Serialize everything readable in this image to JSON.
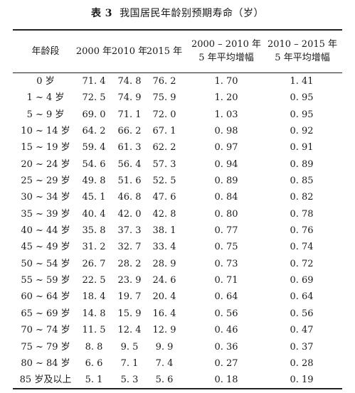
{
  "caption": {
    "number": "表 3",
    "title": "我国居民年龄别预期寿命（岁）"
  },
  "headers": {
    "age": "年龄段",
    "y2000": "2000 年",
    "y2010": "2010 年",
    "y2015": "2015 年",
    "inc1_line1": "2000 – 2010 年",
    "inc1_line2": "5 年平均增幅",
    "inc2_line1": "2010 – 2015 年",
    "inc2_line2": "5 年平均增幅"
  },
  "rows": [
    {
      "age": "0 岁",
      "y2000": "71. 4",
      "y2010": "74. 8",
      "y2015": "76. 2",
      "inc1": "1. 70",
      "inc2": "1. 41"
    },
    {
      "age": "1 ~ 4 岁",
      "y2000": "72. 5",
      "y2010": "74. 9",
      "y2015": "75. 9",
      "inc1": "1. 20",
      "inc2": "0. 95"
    },
    {
      "age": "5 ~ 9 岁",
      "y2000": "69. 0",
      "y2010": "71. 1",
      "y2015": "72. 0",
      "inc1": "1. 03",
      "inc2": "0. 95"
    },
    {
      "age": "10 ~ 14 岁",
      "y2000": "64. 2",
      "y2010": "66. 2",
      "y2015": "67. 1",
      "inc1": "0. 98",
      "inc2": "0. 92"
    },
    {
      "age": "15 ~ 19 岁",
      "y2000": "59. 4",
      "y2010": "61. 3",
      "y2015": "62. 2",
      "inc1": "0. 97",
      "inc2": "0. 91"
    },
    {
      "age": "20 ~ 24 岁",
      "y2000": "54. 6",
      "y2010": "56. 4",
      "y2015": "57. 3",
      "inc1": "0. 94",
      "inc2": "0. 89"
    },
    {
      "age": "25 ~ 29 岁",
      "y2000": "49. 8",
      "y2010": "51. 6",
      "y2015": "52. 5",
      "inc1": "0. 89",
      "inc2": "0. 85"
    },
    {
      "age": "30 ~ 34 岁",
      "y2000": "45. 1",
      "y2010": "46. 8",
      "y2015": "47. 6",
      "inc1": "0. 84",
      "inc2": "0. 82"
    },
    {
      "age": "35 ~ 39 岁",
      "y2000": "40. 4",
      "y2010": "42. 0",
      "y2015": "42. 8",
      "inc1": "0. 80",
      "inc2": "0. 78"
    },
    {
      "age": "40 ~ 44 岁",
      "y2000": "35. 8",
      "y2010": "37. 3",
      "y2015": "38. 1",
      "inc1": "0. 77",
      "inc2": "0. 76"
    },
    {
      "age": "45 ~ 49 岁",
      "y2000": "31. 2",
      "y2010": "32. 7",
      "y2015": "33. 4",
      "inc1": "0. 75",
      "inc2": "0. 74"
    },
    {
      "age": "50 ~ 54 岁",
      "y2000": "26. 7",
      "y2010": "28. 2",
      "y2015": "28. 9",
      "inc1": "0. 73",
      "inc2": "0. 72"
    },
    {
      "age": "55 ~ 59 岁",
      "y2000": "22. 5",
      "y2010": "23. 9",
      "y2015": "24. 6",
      "inc1": "0. 71",
      "inc2": "0. 69"
    },
    {
      "age": "60 ~ 64 岁",
      "y2000": "18. 4",
      "y2010": "19. 7",
      "y2015": "20. 4",
      "inc1": "0. 64",
      "inc2": "0. 64"
    },
    {
      "age": "65 ~ 69 岁",
      "y2000": "14. 8",
      "y2010": "15. 9",
      "y2015": "16. 4",
      "inc1": "0. 56",
      "inc2": "0. 56"
    },
    {
      "age": "70 ~ 74 岁",
      "y2000": "11. 5",
      "y2010": "12. 4",
      "y2015": "12. 9",
      "inc1": "0. 46",
      "inc2": "0. 47"
    },
    {
      "age": "75 ~ 79 岁",
      "y2000": "8. 8",
      "y2010": "9. 5",
      "y2015": "9. 9",
      "inc1": "0. 36",
      "inc2": "0. 37"
    },
    {
      "age": "80 ~ 84 岁",
      "y2000": "6. 6",
      "y2010": "7. 1",
      "y2015": "7. 4",
      "inc1": "0. 27",
      "inc2": "0. 28"
    },
    {
      "age": "85 岁及以上",
      "y2000": "5. 1",
      "y2010": "5. 3",
      "y2015": "5. 6",
      "inc1": "0. 18",
      "inc2": "0. 19"
    }
  ]
}
